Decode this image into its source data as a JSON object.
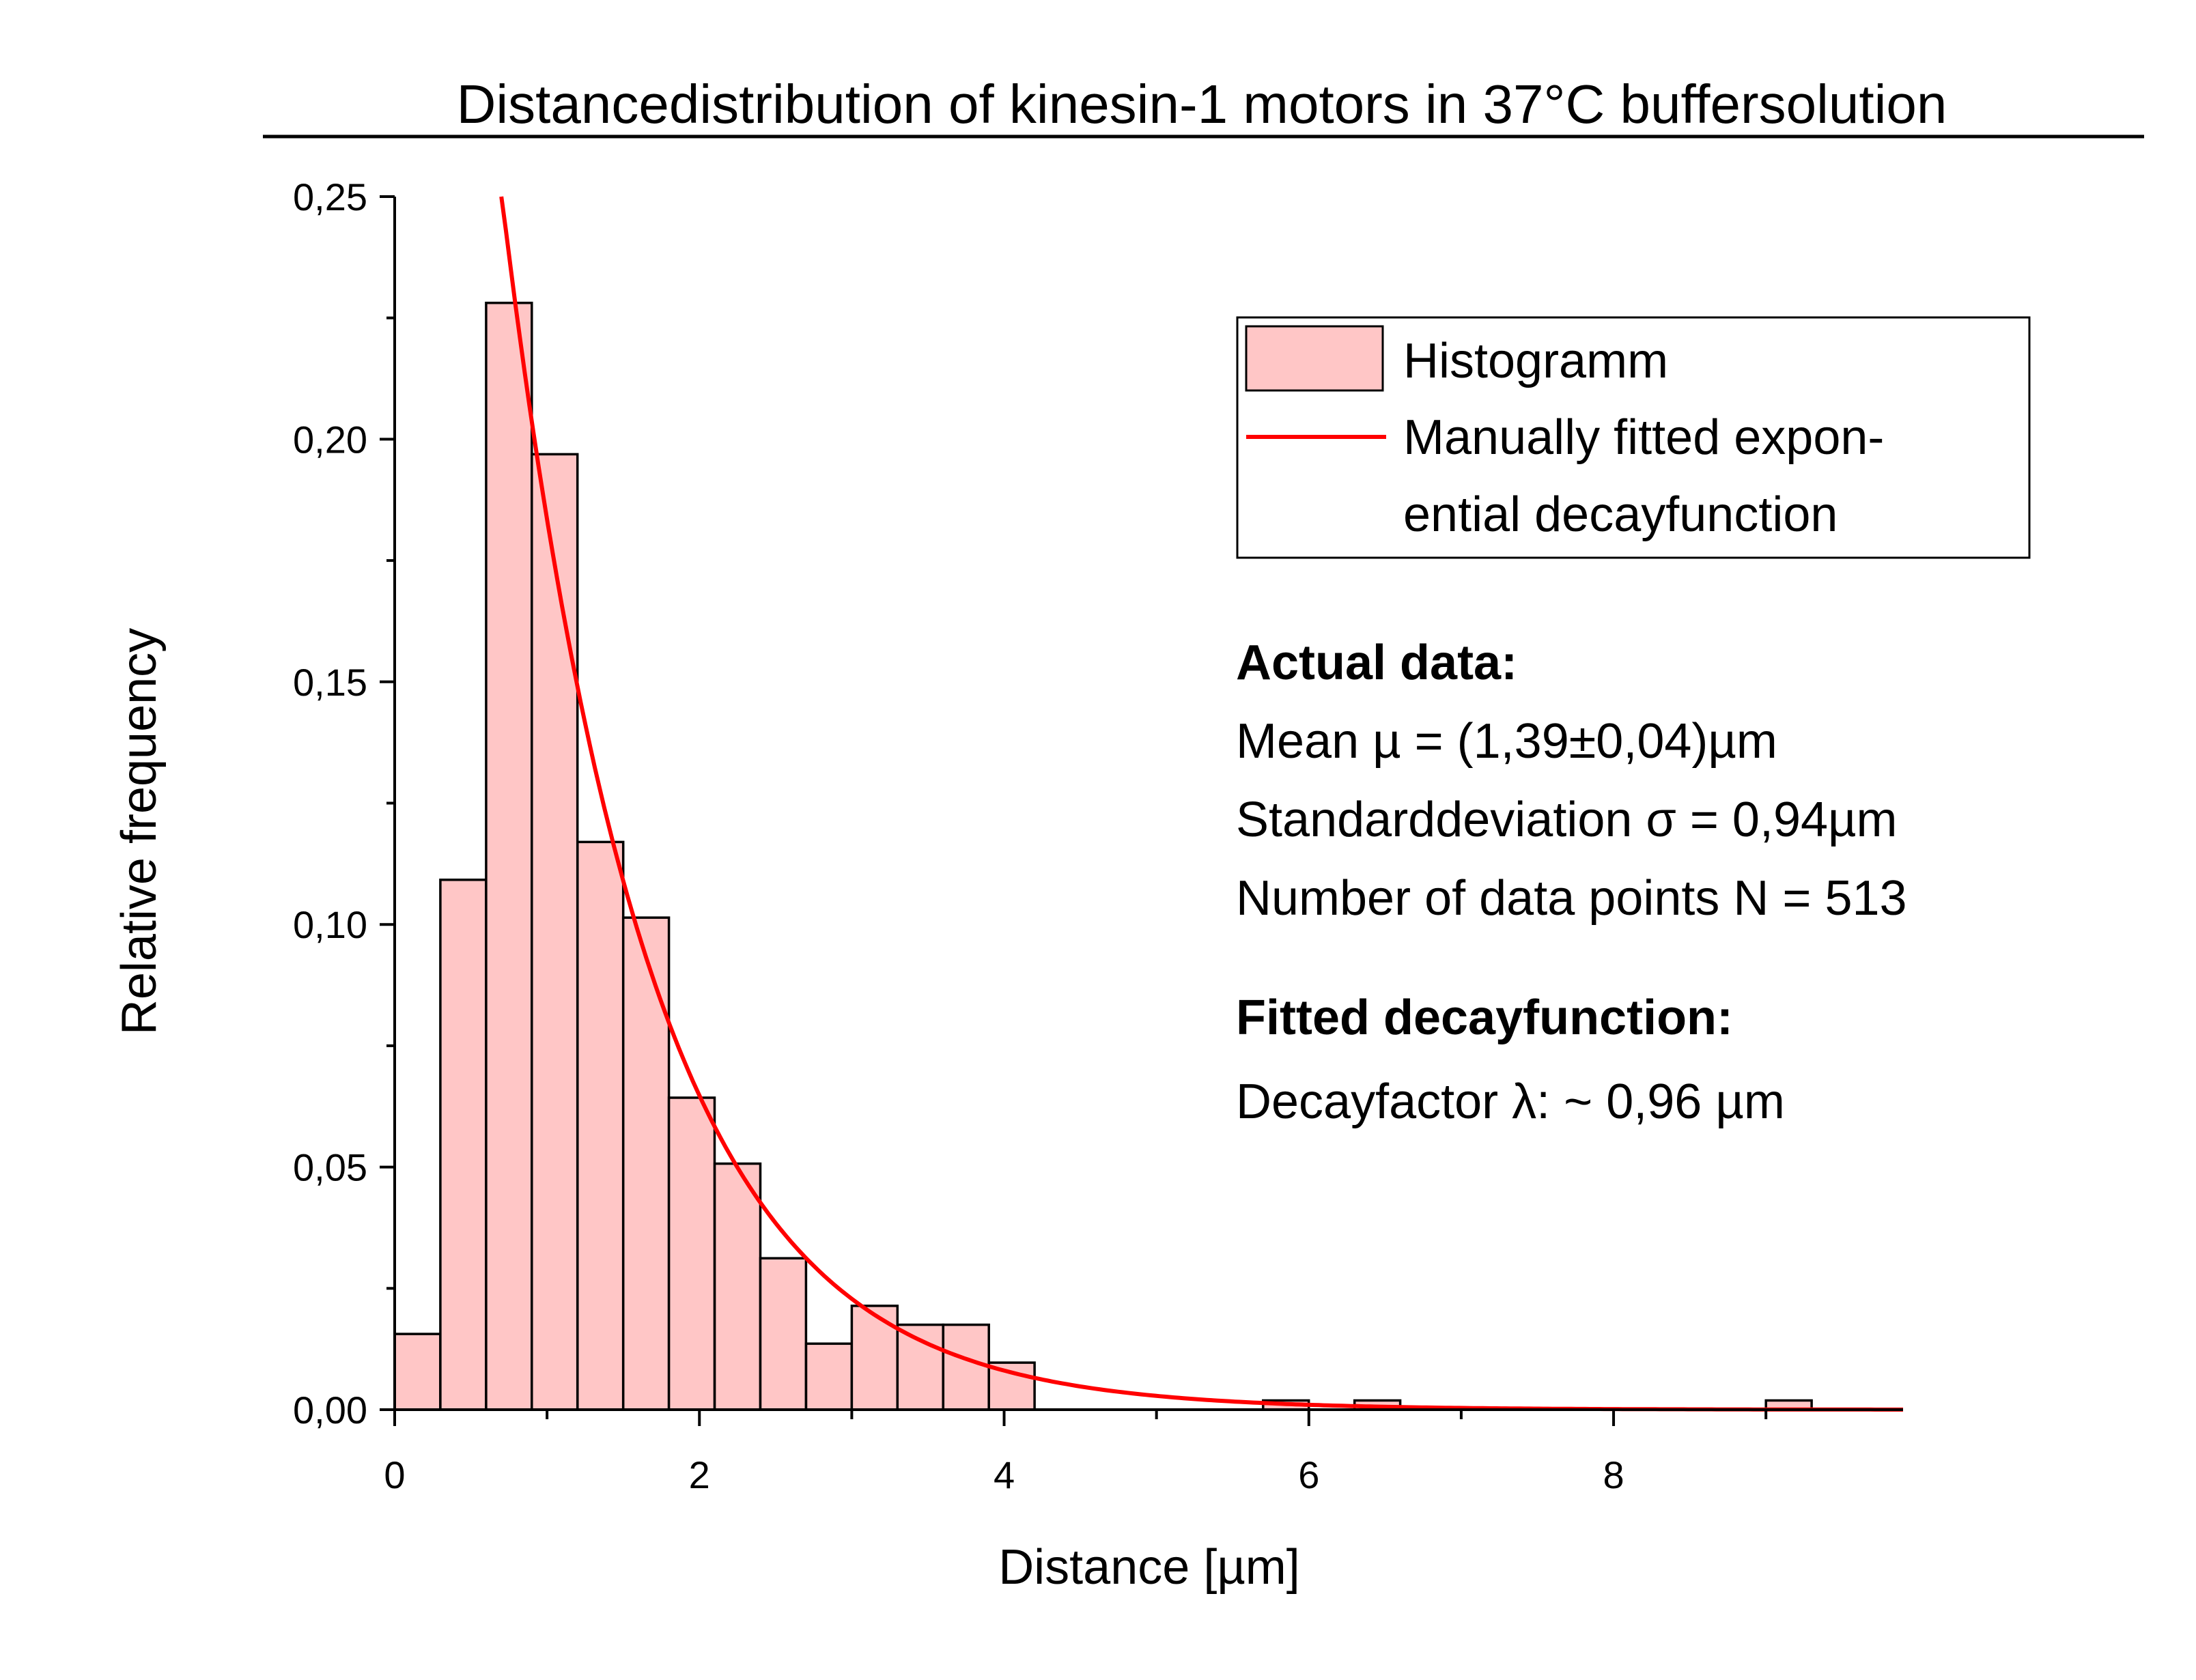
{
  "chart_data": {
    "type": "bar",
    "title": "Distancedistribution of kinesin-1 motors in 37°C buffersolution",
    "xlabel": "Distance [µm]",
    "ylabel": "Relative frequency",
    "xlim": [
      0,
      9.9
    ],
    "ylim": [
      0,
      0.25
    ],
    "x_ticks": [
      {
        "value": 0,
        "label": "0"
      },
      {
        "value": 2,
        "label": "2"
      },
      {
        "value": 4,
        "label": "4"
      },
      {
        "value": 6,
        "label": "6"
      },
      {
        "value": 8,
        "label": "8"
      }
    ],
    "y_ticks": [
      {
        "value": 0.0,
        "label": "0,00"
      },
      {
        "value": 0.05,
        "label": "0,05"
      },
      {
        "value": 0.1,
        "label": "0,10"
      },
      {
        "value": 0.15,
        "label": "0,15"
      },
      {
        "value": 0.2,
        "label": "0,20"
      },
      {
        "value": 0.25,
        "label": "0,25"
      }
    ],
    "bin_width": 0.3,
    "bins": [
      {
        "x0": 0.0,
        "value": 0.0156
      },
      {
        "x0": 0.3,
        "value": 0.1092
      },
      {
        "x0": 0.6,
        "value": 0.2281
      },
      {
        "x0": 0.9,
        "value": 0.1969
      },
      {
        "x0": 1.2,
        "value": 0.117
      },
      {
        "x0": 1.5,
        "value": 0.1014
      },
      {
        "x0": 1.8,
        "value": 0.0643
      },
      {
        "x0": 2.1,
        "value": 0.0507
      },
      {
        "x0": 2.4,
        "value": 0.0312
      },
      {
        "x0": 2.7,
        "value": 0.0136
      },
      {
        "x0": 3.0,
        "value": 0.0214
      },
      {
        "x0": 3.3,
        "value": 0.0175
      },
      {
        "x0": 3.6,
        "value": 0.0175
      },
      {
        "x0": 3.9,
        "value": 0.0097
      },
      {
        "x0": 4.2,
        "value": 0.0
      },
      {
        "x0": 4.5,
        "value": 0.0
      },
      {
        "x0": 4.8,
        "value": 0.0
      },
      {
        "x0": 5.1,
        "value": 0.0
      },
      {
        "x0": 5.4,
        "value": 0.0
      },
      {
        "x0": 5.7,
        "value": 0.0019
      },
      {
        "x0": 6.0,
        "value": 0.0
      },
      {
        "x0": 6.3,
        "value": 0.0019
      },
      {
        "x0": 6.6,
        "value": 0.0
      },
      {
        "x0": 6.9,
        "value": 0.0
      },
      {
        "x0": 7.2,
        "value": 0.0
      },
      {
        "x0": 7.5,
        "value": 0.0
      },
      {
        "x0": 7.8,
        "value": 0.0
      },
      {
        "x0": 8.1,
        "value": 0.0
      },
      {
        "x0": 8.4,
        "value": 0.0
      },
      {
        "x0": 8.7,
        "value": 0.0
      },
      {
        "x0": 9.0,
        "value": 0.0019
      }
    ],
    "fit": {
      "type": "exponential decay",
      "decay_length": 0.96,
      "x_range": [
        0.7,
        9.9
      ],
      "amplitude": 0.52
    },
    "legend": {
      "position": "top-right",
      "entries": [
        {
          "label": "Histogramm",
          "kind": "bar",
          "color": "#ffc6c6"
        },
        {
          "label_lines": [
            "Manually fitted expon-",
            "ential decayfunction"
          ],
          "kind": "line",
          "color": "#ff0000"
        }
      ]
    },
    "grid": false,
    "colors": {
      "bar_fill": "#ffc6c6",
      "bar_edge": "#000000",
      "fit_line": "#ff0000"
    }
  },
  "annotations": {
    "actual_heading": "Actual data:",
    "mean_line": "Mean µ = (1,39±0,04)µm",
    "std_line": "Standarddeviation σ = 0,94µm",
    "n_line": "Number of data points N = 513",
    "fit_heading": "Fitted decayfunction:",
    "decay_line": "Decayfactor λ: ~ 0,96 µm"
  }
}
